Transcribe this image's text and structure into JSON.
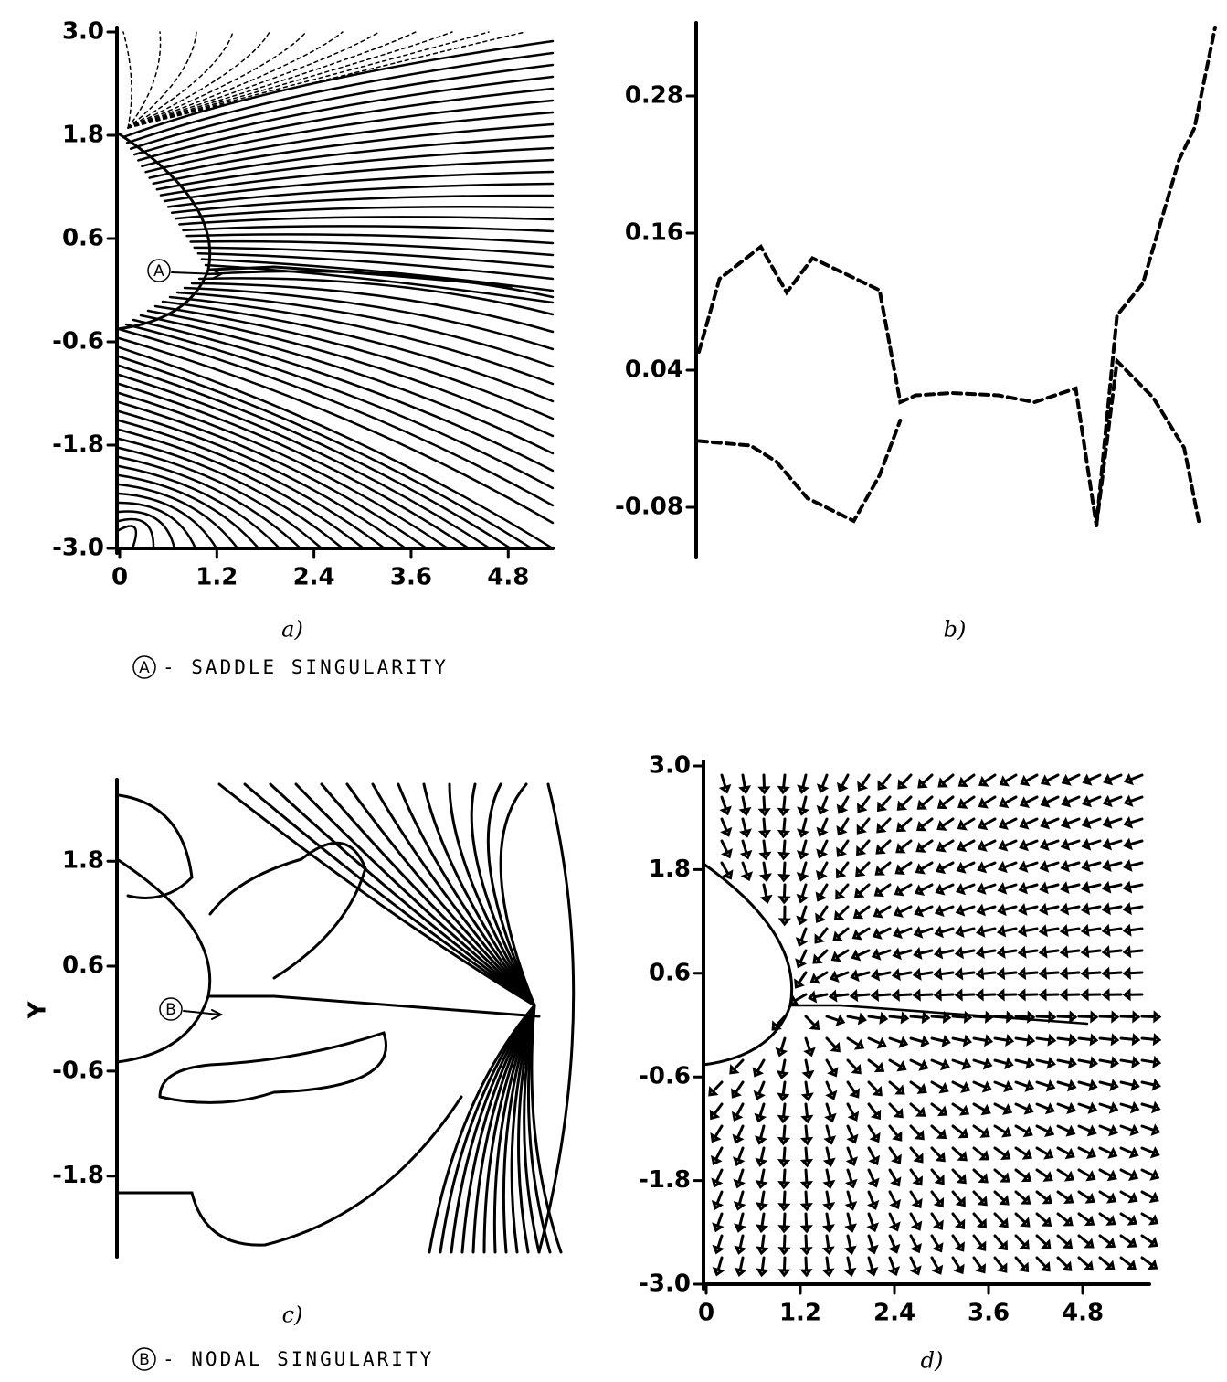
{
  "chart_data": [
    {
      "type": "streamlines",
      "caption": "a)",
      "annotation": {
        "marker": "A",
        "text": "- SADDLE SINGULARITY"
      },
      "xlim": [
        0,
        5.35
      ],
      "ylim": [
        -3,
        3
      ],
      "xticks": [
        0,
        1.2,
        2.4,
        3.6,
        4.8
      ],
      "yticks": [
        {
          "value": -3,
          "label": "-3.0"
        },
        -1.8,
        -0.6,
        0.6,
        1.8,
        {
          "value": 3,
          "label": "3.0"
        }
      ]
    },
    {
      "type": "line",
      "caption": "b)",
      "xlim": [
        0,
        1
      ],
      "ylim": [
        -0.12,
        0.34
      ],
      "yticks": [
        -0.08,
        0.04,
        0.16,
        0.28
      ],
      "line_style": "dashed",
      "series": [
        {
          "color": "#000000",
          "x": [
            0,
            0.04,
            0.12,
            0.17,
            0.22,
            0.35,
            0.39,
            0.42,
            0.49,
            0.58,
            0.65,
            0.73,
            0.77,
            0.81,
            0.86,
            0.93,
            0.96,
            1
          ],
          "values": [
            0.056,
            0.12,
            0.148,
            0.108,
            0.138,
            0.11,
            0.012,
            0.018,
            0.02,
            0.018,
            0.012,
            0.024,
            -0.096,
            0.088,
            0.116,
            0.224,
            0.252,
            0.34
          ]
        },
        {
          "color": "#000000",
          "x": [
            0,
            0.1,
            0.15,
            0.21,
            0.3,
            0.35,
            0.39,
            0.6,
            0.77,
            0.81,
            0.88,
            0.94,
            0.97
          ],
          "values": [
            -0.022,
            -0.026,
            -0.04,
            -0.072,
            -0.092,
            -0.052,
            -0.004,
            null,
            -0.096,
            0.048,
            0.016,
            -0.028,
            -0.096
          ]
        }
      ]
    },
    {
      "type": "contour",
      "caption": "c)",
      "ylabel": "Y",
      "annotation": {
        "marker": "B",
        "text": "- NODAL SINGULARITY"
      },
      "ylim": [
        -2.67,
        2.68
      ],
      "yticks": [
        -1.8,
        -0.6,
        0.6,
        1.8
      ]
    },
    {
      "type": "vectors",
      "caption": "d)",
      "xlim": [
        0,
        5.65
      ],
      "ylim": [
        -3,
        3
      ],
      "xticks": [
        0,
        1.2,
        2.4,
        3.6,
        4.8
      ],
      "yticks": [
        {
          "value": -3,
          "label": "-3.0"
        },
        -1.8,
        -0.6,
        0.6,
        1.8,
        {
          "value": 3,
          "label": "3.0"
        }
      ]
    }
  ]
}
